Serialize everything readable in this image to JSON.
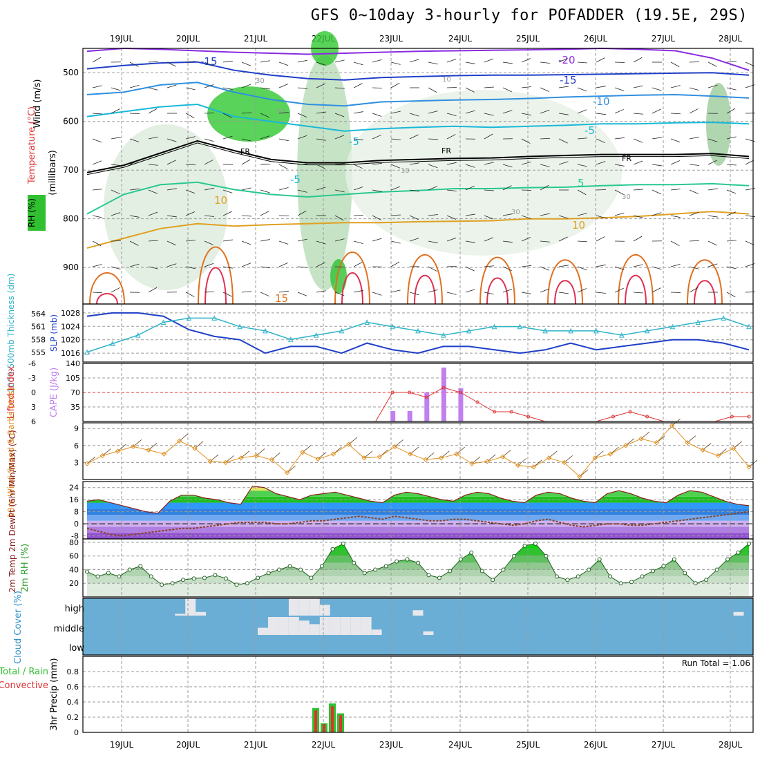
{
  "title": "GFS 0~10day 3-hourly for POFADDER (19.5E, 29S)",
  "dates": [
    "19JUL",
    "20JUL",
    "21JUL",
    "22JUL",
    "23JUL",
    "24JUL",
    "25JUL",
    "26JUL",
    "27JUL",
    "28JUL"
  ],
  "colors": {
    "frame": "#000000",
    "grid": "#9a9a9a",
    "slp": "#1f3fc8",
    "thickness": "#2fb3c8",
    "lifted": "#e03030",
    "cape": "#c080f0",
    "wind": "#e09020",
    "barb": "#604020",
    "rh": "#30c030",
    "cloud_bg": "#6aaed6",
    "cloud": "#e8e8ec",
    "rain": "#30c030",
    "conv": "#e03030"
  },
  "chart_data": [
    {
      "type": "heatmap",
      "panel": "upper-air cross section",
      "ylabel_parts": {
        "wind": "Wind (m/s)",
        "temp": "Temperature (°C)",
        "rh": "RH (%)",
        "pressure": "(millibars)"
      },
      "y_ticks": [
        "500",
        "600",
        "700",
        "800",
        "900"
      ],
      "ylim": [
        450,
        975
      ],
      "isotherm_labels": [
        "-20",
        "-15",
        "-15",
        "-10",
        "-5",
        "-5",
        "FR",
        "FR",
        "FR",
        "-5",
        "5",
        "10",
        "10",
        "15"
      ],
      "rh_labels": [
        "30",
        "70",
        "10",
        "10",
        "30",
        "30"
      ],
      "isotherms": [
        {
          "label": "-20",
          "color": "#8a2be2",
          "p": [
            456,
            450,
            452,
            455,
            458,
            460,
            462,
            460,
            458,
            456,
            455,
            454,
            453,
            452,
            450,
            452,
            455,
            470,
            495
          ]
        },
        {
          "label": "-15",
          "color": "#1f3fc8",
          "p": [
            492,
            485,
            480,
            478,
            495,
            505,
            512,
            515,
            510,
            508,
            506,
            505,
            505,
            504,
            503,
            502,
            501,
            500,
            505
          ]
        },
        {
          "label": "-10",
          "color": "#2f8fe0",
          "p": [
            545,
            540,
            525,
            520,
            540,
            555,
            565,
            568,
            560,
            558,
            556,
            555,
            553,
            550,
            548,
            546,
            545,
            548,
            552
          ]
        },
        {
          "label": "-5",
          "color": "#18b8d8",
          "p": [
            590,
            580,
            570,
            565,
            590,
            600,
            610,
            620,
            615,
            612,
            610,
            612,
            610,
            608,
            605,
            605,
            603,
            602,
            605
          ]
        },
        {
          "label": "FR",
          "color": "#000000",
          "p": [
            705,
            690,
            665,
            640,
            660,
            678,
            685,
            685,
            680,
            678,
            676,
            675,
            672,
            670,
            668,
            668,
            668,
            666,
            672
          ]
        },
        {
          "label": "5",
          "color": "#28c890",
          "p": [
            790,
            750,
            730,
            725,
            740,
            750,
            755,
            750,
            745,
            742,
            738,
            738,
            736,
            735,
            732,
            730,
            730,
            728,
            732
          ]
        },
        {
          "label": "10",
          "color": "#e0a020",
          "p": [
            860,
            840,
            820,
            810,
            815,
            812,
            810,
            808,
            808,
            806,
            805,
            804,
            800,
            800,
            798,
            795,
            790,
            785,
            790
          ]
        }
      ],
      "rh_max": 90
    },
    {
      "type": "line",
      "panel": "SLP and thickness",
      "series": [
        {
          "name": "SLP (mb)",
          "values": [
            1027,
            1028,
            1028,
            1027,
            1023,
            1021,
            1020,
            1016,
            1018,
            1018,
            1016,
            1019,
            1017,
            1016,
            1018,
            1018,
            1017,
            1016,
            1017,
            1019,
            1017,
            1018,
            1019,
            1020,
            1020,
            1019,
            1017
          ]
        },
        {
          "name": "1000-500mb Thickness (dm)",
          "values": [
            555,
            557,
            559,
            562,
            563,
            563,
            561,
            560,
            558,
            559,
            560,
            562,
            561,
            560,
            559,
            560,
            561,
            561,
            560,
            560,
            560,
            559,
            560,
            561,
            562,
            563,
            561
          ]
        }
      ],
      "left_ticks": [
        "1016",
        "1020",
        "1024",
        "1028"
      ],
      "right_ticks": [
        "555",
        "558",
        "561",
        "564"
      ]
    },
    {
      "type": "bar",
      "panel": "CAPE and Lifted Index",
      "ylabel": "CAPE (J/kg)",
      "ylabel2": "Lifted Index",
      "cape_ticks": [
        "35",
        "70",
        "105",
        "140"
      ],
      "li_ticks": [
        "-6",
        "-3",
        "0",
        "3",
        "6"
      ],
      "cape_values": [
        0,
        0,
        0,
        0,
        0,
        0,
        0,
        0,
        0,
        0,
        0,
        0,
        0,
        0,
        0,
        0,
        0,
        0,
        25,
        25,
        70,
        130,
        80,
        0,
        0,
        0,
        0,
        0,
        0,
        0,
        0,
        0,
        0,
        0,
        0,
        0,
        0,
        0,
        0,
        0
      ],
      "li_values": [
        6,
        6,
        6,
        6,
        6,
        6,
        6,
        6,
        6,
        6,
        6,
        6,
        6,
        6,
        6,
        6,
        6,
        6,
        0,
        0,
        1,
        -1,
        0,
        2,
        4,
        4,
        5,
        6,
        6,
        6,
        6,
        5,
        4,
        5,
        6,
        6,
        6,
        6,
        5,
        5
      ]
    },
    {
      "type": "line",
      "panel": "10m wind",
      "ylabel": "10m Wind Speed & Barbs (m/s)",
      "y_ticks": [
        "3",
        "6",
        "9"
      ],
      "ylim": [
        0,
        10
      ],
      "values": [
        2.8,
        4.2,
        5.0,
        5.8,
        5.2,
        4.5,
        6.8,
        5.5,
        3.2,
        3.0,
        3.8,
        4.2,
        3.5,
        1.2,
        4.8,
        3.6,
        4.5,
        6.2,
        3.8,
        4.0,
        5.8,
        4.5,
        3.5,
        3.8,
        4.5,
        2.8,
        3.2,
        4.0,
        2.5,
        2.2,
        3.8,
        3.0,
        0.5,
        3.8,
        4.5,
        6.0,
        7.2,
        6.5,
        9.5,
        6.5,
        5.2,
        4.2,
        5.5,
        2.2
      ]
    },
    {
      "type": "area",
      "panel": "2m temperature",
      "ylabel": "2m Temp 2m DewPt (6hr Min/Max) (°C)",
      "y_ticks": [
        "-8",
        "0",
        "8",
        "16",
        "24"
      ],
      "ylim": [
        -10,
        28
      ],
      "temp": [
        15,
        16,
        14,
        12,
        10,
        8,
        7,
        15,
        19,
        19,
        17,
        16,
        14,
        13,
        25,
        24,
        20,
        18,
        16,
        19,
        20,
        21,
        19,
        17,
        15,
        14,
        19,
        21,
        20,
        18,
        16,
        15,
        19,
        21,
        20,
        17,
        15,
        14,
        19,
        21,
        20,
        17,
        15,
        14,
        20,
        22,
        20,
        17,
        15,
        14,
        19,
        22,
        21,
        18,
        15,
        13,
        12
      ],
      "dewpt": [
        -3,
        -5,
        -7,
        -8,
        -7,
        -6,
        -5,
        -4,
        -3,
        -3,
        -2,
        -1,
        0,
        1,
        1,
        1,
        0,
        0,
        1,
        2,
        2,
        3,
        4,
        5,
        4,
        3,
        5,
        4,
        3,
        2,
        2,
        3,
        3,
        2,
        1,
        0,
        -1,
        0,
        2,
        3,
        1,
        -1,
        -2,
        -1,
        0,
        0,
        -1,
        -1,
        0,
        1,
        2,
        3,
        4,
        5,
        6,
        7,
        8
      ]
    },
    {
      "type": "area",
      "panel": "2m RH",
      "ylabel": "2m RH (%)",
      "y_ticks": [
        "20",
        "40",
        "60",
        "80"
      ],
      "ylim": [
        0,
        85
      ],
      "values": [
        37,
        30,
        35,
        30,
        40,
        45,
        30,
        18,
        20,
        25,
        27,
        28,
        32,
        27,
        18,
        20,
        28,
        35,
        40,
        45,
        40,
        28,
        45,
        70,
        78,
        50,
        35,
        40,
        45,
        52,
        55,
        50,
        32,
        28,
        38,
        55,
        65,
        38,
        25,
        40,
        60,
        75,
        78,
        60,
        30,
        25,
        30,
        40,
        55,
        30,
        20,
        22,
        30,
        38,
        45,
        55,
        35,
        20,
        25,
        40,
        55,
        65,
        78
      ]
    },
    {
      "type": "bar",
      "panel": "Cloud Cover",
      "ylabel": "Cloud Cover (%)",
      "level_labels": [
        "high",
        "middle",
        "low"
      ],
      "high": [
        0,
        0,
        0,
        0,
        0,
        0,
        0,
        0,
        0,
        10,
        100,
        20,
        0,
        0,
        0,
        0,
        0,
        0,
        0,
        0,
        100,
        100,
        100,
        60,
        0,
        0,
        0,
        0,
        0,
        0,
        0,
        0,
        30,
        0,
        0,
        0,
        0,
        0,
        0,
        0,
        0,
        0,
        0,
        0,
        0,
        0,
        0,
        0,
        0,
        0,
        0,
        0,
        0,
        0,
        0,
        0,
        0,
        0,
        0,
        0,
        0,
        0,
        0,
        20,
        0
      ],
      "middle": [
        0,
        0,
        0,
        0,
        0,
        0,
        0,
        0,
        0,
        0,
        0,
        0,
        0,
        0,
        0,
        0,
        0,
        40,
        100,
        100,
        100,
        80,
        60,
        100,
        100,
        100,
        100,
        100,
        30,
        0,
        0,
        0,
        0,
        20,
        0,
        0,
        0,
        0,
        0,
        0,
        0,
        0,
        0,
        0,
        0,
        0,
        0,
        0,
        0,
        0,
        0,
        0,
        0,
        0,
        0,
        0,
        0,
        0,
        0,
        0,
        0,
        0,
        0,
        0,
        0
      ]
    },
    {
      "type": "bar",
      "panel": "3hr Precip",
      "ylabel": "3hr Precip (mm)",
      "legend": [
        "Total / Rain",
        "Convective"
      ],
      "run_total_label": "Run Total = 1.06",
      "y_ticks": [
        "0",
        "0.2",
        "0.4",
        "0.6",
        "0.8"
      ],
      "ylim": [
        0,
        1.0
      ],
      "values": [
        0.32,
        0.12,
        0.38,
        0.25
      ]
    }
  ]
}
